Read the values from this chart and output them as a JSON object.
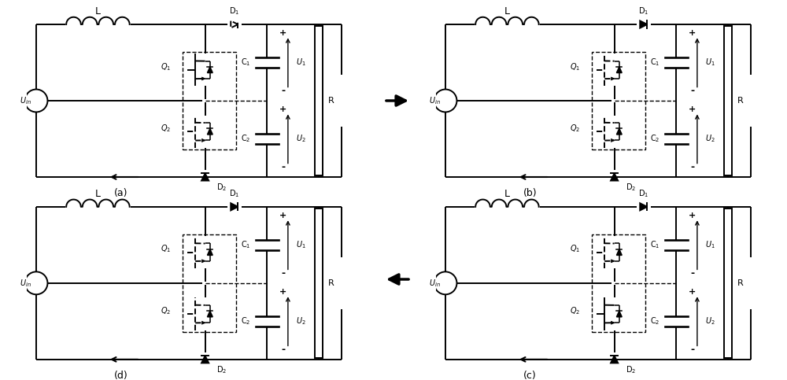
{
  "bg_color": "#ffffff",
  "labels": {
    "L": "L",
    "D1": "D$_1$",
    "D2": "D$_2$",
    "Q1": "Q$_1$",
    "Q2": "Q$_2$",
    "C1": "C$_1$",
    "C2": "C$_2$",
    "U1": "U$_1$",
    "U2": "U$_2$",
    "Uin": "U$_{in}$",
    "R": "R",
    "a": "(a)",
    "b": "(b)",
    "c": "(c)",
    "d": "(d)"
  }
}
